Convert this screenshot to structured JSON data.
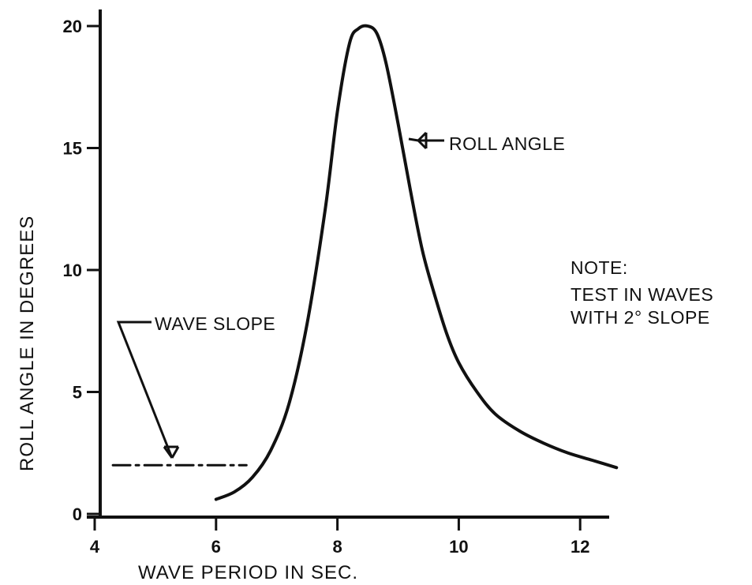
{
  "chart_data": {
    "type": "line",
    "xlabel": "WAVE PERIOD IN SEC.",
    "ylabel": "ROLL ANGLE IN DEGREES",
    "xlim": [
      4,
      12.6
    ],
    "ylim": [
      0,
      20.5
    ],
    "x_ticks": [
      4,
      6,
      8,
      10,
      12
    ],
    "y_ticks": [
      0,
      5,
      10,
      15,
      20
    ],
    "grid": false,
    "series": [
      {
        "name": "ROLL ANGLE",
        "style": "solid",
        "x": [
          6.0,
          6.3,
          6.6,
          6.9,
          7.2,
          7.5,
          7.8,
          8.0,
          8.2,
          8.35,
          8.5,
          8.65,
          8.8,
          9.0,
          9.2,
          9.4,
          9.6,
          9.8,
          10.0,
          10.3,
          10.6,
          11.0,
          11.4,
          11.8,
          12.2,
          12.6
        ],
        "y": [
          0.6,
          0.9,
          1.5,
          2.6,
          4.5,
          7.8,
          12.5,
          16.5,
          19.3,
          19.9,
          20.0,
          19.7,
          18.5,
          16.0,
          13.3,
          10.8,
          9.0,
          7.4,
          6.2,
          5.0,
          4.1,
          3.4,
          2.9,
          2.5,
          2.2,
          1.9
        ]
      },
      {
        "name": "WAVE SLOPE",
        "style": "dash-dot",
        "x": [
          4.3,
          6.5
        ],
        "y": [
          2.0,
          2.0
        ]
      }
    ],
    "annotations": {
      "roll_angle": "ROLL ANGLE",
      "wave_slope": "WAVE SLOPE",
      "note_title": "NOTE:",
      "note_line1": "TEST IN WAVES",
      "note_line2": "WITH 2° SLOPE"
    },
    "colors": {
      "ink": "#111111",
      "background": "#ffffff"
    }
  }
}
